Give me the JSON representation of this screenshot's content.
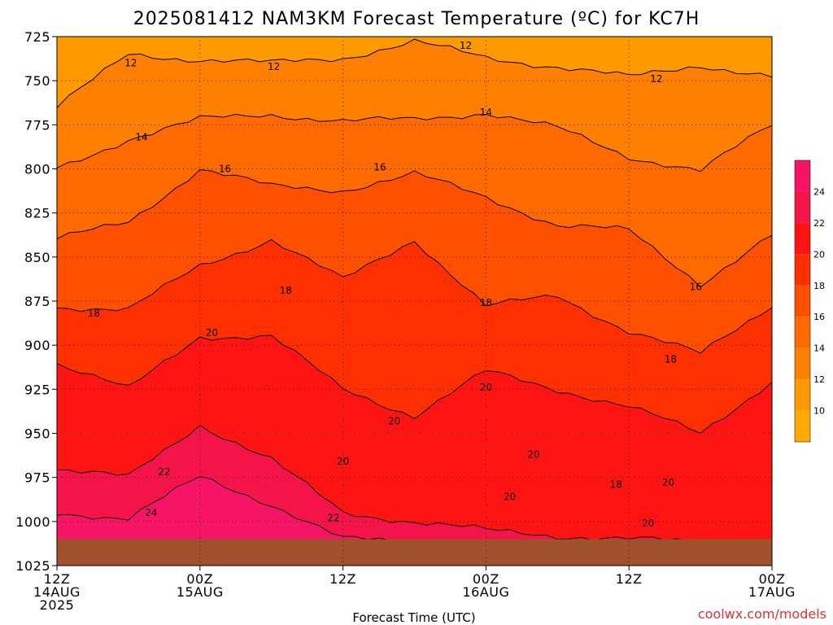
{
  "chart_data": {
    "type": "heatmap",
    "title": "2025081412 NAM3KM Forecast Temperature (ºC) for KC7H",
    "xlabel": "Forecast Time (UTC)",
    "credit": "coolwx.com/models",
    "y_axis": {
      "label": "",
      "range": [
        725,
        1025
      ],
      "inverted": true,
      "ticks": [
        725,
        750,
        775,
        800,
        825,
        850,
        875,
        900,
        925,
        950,
        975,
        1000,
        1025
      ]
    },
    "x_axis": {
      "range_hours": [
        0,
        60
      ],
      "ticks": [
        {
          "hour": 0,
          "lines": [
            "12Z",
            "14AUG",
            "2025"
          ]
        },
        {
          "hour": 12,
          "lines": [
            "00Z",
            "15AUG"
          ]
        },
        {
          "hour": 24,
          "lines": [
            "12Z"
          ]
        },
        {
          "hour": 36,
          "lines": [
            "00Z",
            "16AUG"
          ]
        },
        {
          "hour": 48,
          "lines": [
            "12Z"
          ]
        },
        {
          "hour": 60,
          "lines": [
            "00Z",
            "17AUG"
          ]
        }
      ]
    },
    "grid": true,
    "colorbar": {
      "position": "right",
      "levels": [
        8,
        10,
        12,
        14,
        16,
        18,
        20,
        22,
        24,
        26
      ],
      "labels": [
        10,
        12,
        14,
        16,
        18,
        20,
        22,
        24
      ],
      "colors": [
        "#ffaa00",
        "#ff9900",
        "#ff8000",
        "#ff6a00",
        "#ff5000",
        "#ff3000",
        "#ff1414",
        "#f5144a",
        "#f51466"
      ]
    },
    "terrain_color": "#a0522d",
    "hours": [
      0,
      6,
      12,
      18,
      24,
      30,
      36,
      42,
      48,
      54,
      60
    ],
    "isotherm_pressures": [
      {
        "temp": 12,
        "p": [
          765,
          735,
          738,
          740,
          737,
          728,
          737,
          742,
          748,
          741,
          748
        ]
      },
      {
        "temp": 14,
        "p": [
          800,
          783,
          772,
          769,
          773,
          772,
          768,
          777,
          793,
          801,
          775
        ]
      },
      {
        "temp": 16,
        "p": [
          840,
          830,
          800,
          810,
          812,
          803,
          816,
          832,
          835,
          865,
          838
        ]
      },
      {
        "temp": 18,
        "p": [
          878,
          880,
          855,
          840,
          863,
          840,
          878,
          872,
          892,
          905,
          877
        ]
      },
      {
        "temp": 20,
        "p": [
          910,
          925,
          895,
          895,
          925,
          940,
          915,
          925,
          935,
          950,
          920
        ]
      },
      {
        "temp": 22,
        "p": [
          970,
          975,
          945,
          965,
          995,
          1000,
          1005,
          1008,
          1010,
          1012,
          1010
        ]
      },
      {
        "temp": 24,
        "p": [
          995,
          998,
          975,
          990,
          1010,
          1012,
          1016,
          1020,
          1022,
          1022,
          1020
        ]
      }
    ],
    "contour_labels": [
      {
        "text": "12",
        "hour": 6.2,
        "p": 740
      },
      {
        "text": "12",
        "hour": 18.2,
        "p": 742
      },
      {
        "text": "12",
        "hour": 34.3,
        "p": 730
      },
      {
        "text": "12",
        "hour": 50.3,
        "p": 749
      },
      {
        "text": "14",
        "hour": 7.1,
        "p": 782
      },
      {
        "text": "14",
        "hour": 36.0,
        "p": 768
      },
      {
        "text": "16",
        "hour": 14.1,
        "p": 800
      },
      {
        "text": "16",
        "hour": 27.1,
        "p": 799
      },
      {
        "text": "16",
        "hour": 53.6,
        "p": 867
      },
      {
        "text": "18",
        "hour": 3.1,
        "p": 882
      },
      {
        "text": "18",
        "hour": 19.2,
        "p": 869
      },
      {
        "text": "18",
        "hour": 36.0,
        "p": 876
      },
      {
        "text": "18",
        "hour": 51.5,
        "p": 908
      },
      {
        "text": "20",
        "hour": 13.0,
        "p": 893
      },
      {
        "text": "20",
        "hour": 28.3,
        "p": 943
      },
      {
        "text": "20",
        "hour": 24.0,
        "p": 966
      },
      {
        "text": "20",
        "hour": 36.0,
        "p": 924
      },
      {
        "text": "20",
        "hour": 40.0,
        "p": 962
      },
      {
        "text": "20",
        "hour": 38.0,
        "p": 986
      },
      {
        "text": "20",
        "hour": 51.3,
        "p": 978
      },
      {
        "text": "20",
        "hour": 49.6,
        "p": 1001
      },
      {
        "text": "18",
        "hour": 46.9,
        "p": 979
      },
      {
        "text": "22",
        "hour": 9.0,
        "p": 972
      },
      {
        "text": "22",
        "hour": 23.2,
        "p": 998
      },
      {
        "text": "24",
        "hour": 7.9,
        "p": 995
      }
    ]
  }
}
